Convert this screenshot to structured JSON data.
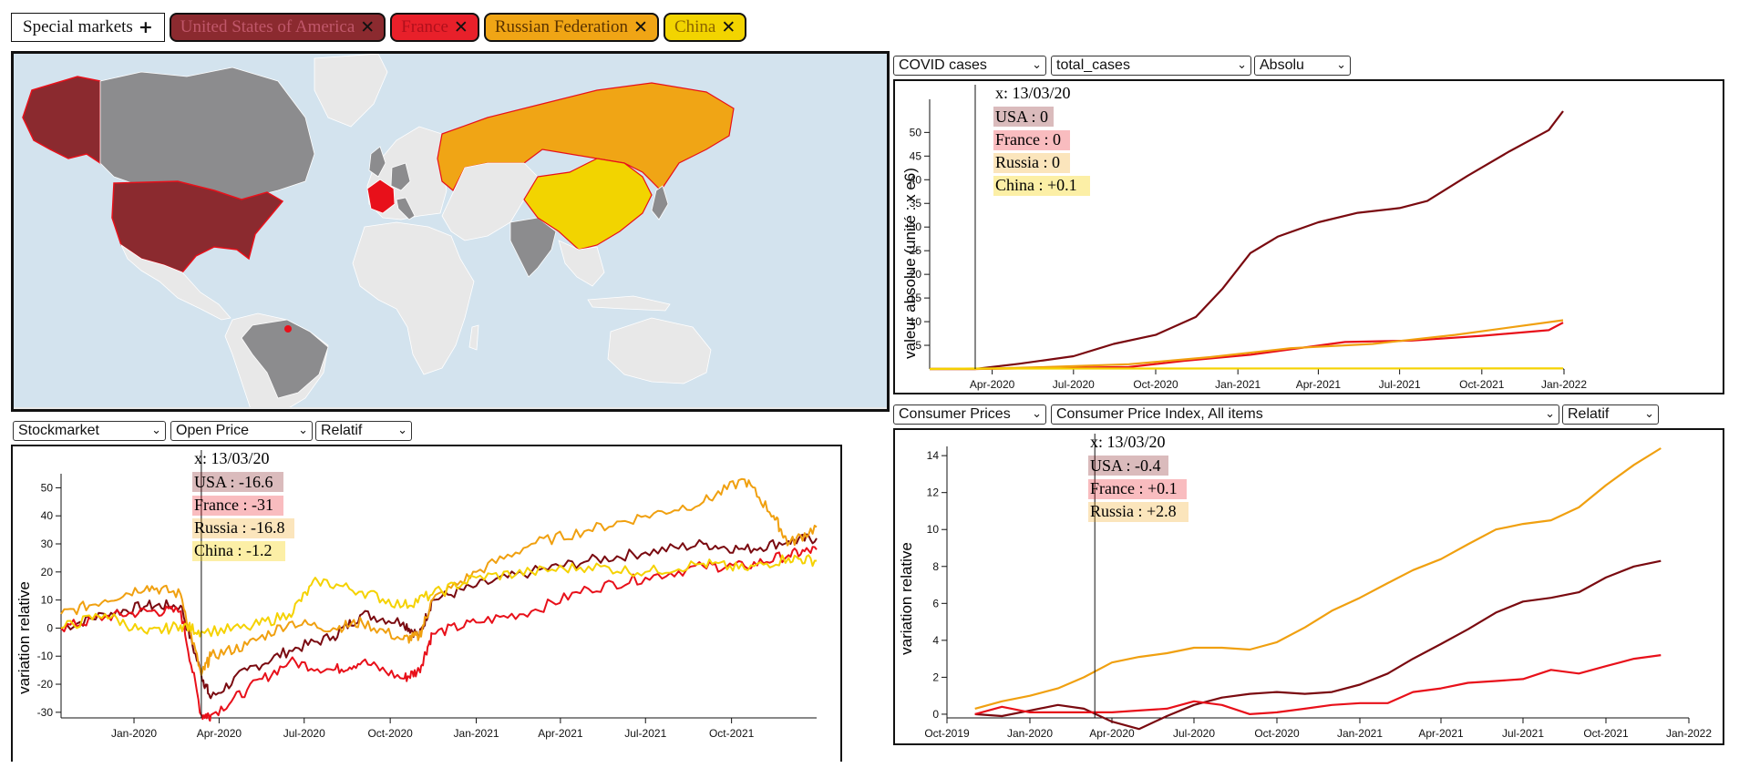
{
  "header": {
    "special_label": "Special markets",
    "special_icon": "plus-icon",
    "countries": [
      {
        "label": "United States of America",
        "bg": "#8b2a2f",
        "fg": "#c0576a"
      },
      {
        "label": "France",
        "bg": "#e8202a",
        "fg": "#b0101c"
      },
      {
        "label": "Russian Federation",
        "bg": "#f0a515",
        "fg": "#5a3300"
      },
      {
        "label": "China",
        "bg": "#f2d400",
        "fg": "#8a6500"
      }
    ]
  },
  "colors": {
    "usa": "#7a0a10",
    "france": "#e8101a",
    "russia": "#f0a010",
    "china": "#f5d200",
    "map_sea": "#d3e3ee",
    "map_land": "#e8e8e8",
    "map_grey": "#8c8c8e"
  },
  "covid": {
    "selects": [
      "COVID cases",
      "total_cases",
      "Absolu"
    ],
    "ylabel": "valeur absolue (unité : x e6)",
    "tooltip": {
      "x": "x: 13/03/20",
      "usa": "USA : 0",
      "france": "France : 0",
      "russia": "Russia : 0",
      "china": "China : +0.1"
    }
  },
  "stock": {
    "selects": [
      "Stockmarket",
      "Open Price",
      "Relatif"
    ],
    "ylabel": "variation relative",
    "tooltip": {
      "x": "x: 13/03/20",
      "usa": "USA : -16.6",
      "france": "France : -31",
      "russia": "Russia : -16.8",
      "china": "China : -1.2"
    }
  },
  "cpi": {
    "selects": [
      "Consumer Prices",
      "Consumer Price Index, All items",
      "Relatif"
    ],
    "ylabel": "variation relative",
    "tooltip": {
      "x": "x: 13/03/20",
      "usa": "USA : -0.4",
      "france": "France : +0.1",
      "russia": "Russia : +2.8"
    }
  },
  "chart_data": [
    {
      "type": "line",
      "title": "",
      "ylabel": "valeur absolue (unité : x e6)",
      "x_ticks": [
        "Apr-2020",
        "Jul-2020",
        "Oct-2020",
        "Jan-2021",
        "Apr-2021",
        "Jul-2021",
        "Oct-2021",
        "Jan-2022"
      ],
      "y_ticks": [
        5,
        10,
        15,
        20,
        25,
        30,
        35,
        40,
        45,
        50
      ],
      "xlim": [
        "2020-01-22",
        "2022-01-01"
      ],
      "ylim": [
        0,
        57
      ],
      "series": [
        {
          "name": "USA",
          "color": "#7a0a10",
          "x": [
            "2020-01-22",
            "2020-03-13",
            "2020-05-01",
            "2020-07-01",
            "2020-08-15",
            "2020-10-01",
            "2020-11-15",
            "2020-12-15",
            "2021-01-15",
            "2021-02-15",
            "2021-04-01",
            "2021-05-15",
            "2021-07-01",
            "2021-08-01",
            "2021-09-15",
            "2021-11-01",
            "2021-12-15",
            "2021-12-31"
          ],
          "values": [
            0,
            0,
            1.1,
            2.7,
            5.3,
            7.2,
            11.0,
            17.0,
            24.5,
            28.0,
            31.0,
            33.0,
            34.0,
            35.5,
            40.8,
            46.0,
            50.5,
            54.5
          ]
        },
        {
          "name": "France",
          "color": "#e8101a",
          "x": [
            "2020-01-22",
            "2020-03-13",
            "2020-06-01",
            "2020-09-01",
            "2020-11-01",
            "2021-01-15",
            "2021-04-15",
            "2021-05-01",
            "2021-07-15",
            "2021-10-01",
            "2021-12-15",
            "2021-12-31"
          ],
          "values": [
            0,
            0,
            0.2,
            0.4,
            1.7,
            3.0,
            5.3,
            5.7,
            6.0,
            7.0,
            8.2,
            9.8
          ]
        },
        {
          "name": "Russia",
          "color": "#f0a010",
          "x": [
            "2020-01-22",
            "2020-03-13",
            "2020-06-01",
            "2020-09-01",
            "2020-12-01",
            "2021-03-01",
            "2021-06-01",
            "2021-09-01",
            "2021-12-31"
          ],
          "values": [
            0,
            0,
            0.4,
            1.0,
            2.5,
            4.4,
            5.3,
            7.2,
            10.3
          ]
        },
        {
          "name": "China",
          "color": "#f5d200",
          "x": [
            "2020-01-22",
            "2020-03-13",
            "2021-12-31"
          ],
          "values": [
            0,
            0.1,
            0.11
          ]
        }
      ]
    },
    {
      "type": "line",
      "title": "",
      "ylabel": "variation relative",
      "x_ticks": [
        "Jan-2020",
        "Apr-2020",
        "Jul-2020",
        "Oct-2020",
        "Jan-2021",
        "Apr-2021",
        "Jul-2021",
        "Oct-2021"
      ],
      "y_ticks": [
        -30,
        -20,
        -10,
        0,
        10,
        20,
        30,
        40,
        50
      ],
      "xlim": [
        "2019-10-15",
        "2021-12-31"
      ],
      "ylim": [
        -32,
        55
      ],
      "series": [
        {
          "name": "USA",
          "color": "#7a0a10",
          "x": [
            "2019-10-15",
            "2019-12-01",
            "2020-01-15",
            "2020-02-20",
            "2020-03-13",
            "2020-03-23",
            "2020-05-01",
            "2020-06-15",
            "2020-08-01",
            "2020-09-01",
            "2020-10-15",
            "2020-11-01",
            "2020-11-15",
            "2021-01-01",
            "2021-03-01",
            "2021-05-01",
            "2021-07-01",
            "2021-09-01",
            "2021-10-15",
            "2021-12-01",
            "2021-12-31"
          ],
          "values": [
            0,
            5,
            8,
            8,
            -16.6,
            -25,
            -15,
            -8,
            -3,
            5,
            2,
            -3,
            10,
            15,
            20,
            24,
            27,
            30,
            28,
            31,
            32
          ]
        },
        {
          "name": "France",
          "color": "#e8101a",
          "x": [
            "2019-10-15",
            "2019-12-01",
            "2020-01-15",
            "2020-02-20",
            "2020-03-13",
            "2020-03-23",
            "2020-05-01",
            "2020-06-15",
            "2020-08-01",
            "2020-09-01",
            "2020-10-15",
            "2020-11-01",
            "2020-11-15",
            "2021-01-01",
            "2021-03-01",
            "2021-05-01",
            "2021-07-01",
            "2021-09-01",
            "2021-10-15",
            "2021-12-01",
            "2021-12-31"
          ],
          "values": [
            0,
            4,
            6,
            6,
            -31,
            -31,
            -22,
            -12,
            -15,
            -12,
            -18,
            -15,
            -2,
            2,
            6,
            14,
            18,
            22,
            22,
            26,
            28
          ]
        },
        {
          "name": "Russia",
          "color": "#f0a010",
          "x": [
            "2019-10-15",
            "2019-12-01",
            "2020-01-15",
            "2020-02-20",
            "2020-03-13",
            "2020-03-23",
            "2020-05-01",
            "2020-06-15",
            "2020-08-01",
            "2020-09-01",
            "2020-10-15",
            "2020-11-01",
            "2020-11-15",
            "2021-01-01",
            "2021-03-01",
            "2021-05-01",
            "2021-07-01",
            "2021-09-01",
            "2021-10-15",
            "2021-11-15",
            "2021-12-01",
            "2021-12-31"
          ],
          "values": [
            5,
            10,
            15,
            12,
            -16.8,
            -10,
            -6,
            2,
            0,
            2,
            -4,
            -3,
            10,
            20,
            30,
            35,
            40,
            45,
            53,
            40,
            30,
            36
          ]
        },
        {
          "name": "China",
          "color": "#f5d200",
          "x": [
            "2019-10-15",
            "2019-12-01",
            "2020-01-15",
            "2020-02-20",
            "2020-03-13",
            "2020-05-01",
            "2020-06-15",
            "2020-07-15",
            "2020-09-01",
            "2020-10-15",
            "2020-11-15",
            "2021-01-01",
            "2021-03-01",
            "2021-05-01",
            "2021-07-01",
            "2021-09-01",
            "2021-10-15",
            "2021-12-01",
            "2021-12-31"
          ],
          "values": [
            0,
            5,
            -2,
            1,
            -1.2,
            0,
            5,
            17,
            13,
            8,
            12,
            18,
            20,
            22,
            20,
            23,
            21,
            25,
            24
          ]
        }
      ]
    },
    {
      "type": "line",
      "title": "",
      "ylabel": "variation relative",
      "x_ticks": [
        "Oct-2019",
        "Jan-2020",
        "Apr-2020",
        "Jul-2020",
        "Oct-2020",
        "Jan-2021",
        "Apr-2021",
        "Jul-2021",
        "Oct-2021",
        "Jan-2022"
      ],
      "y_ticks": [
        0,
        2,
        4,
        6,
        8,
        10,
        12,
        14
      ],
      "xlim": [
        "2019-10-01",
        "2022-01-01"
      ],
      "ylim": [
        -0.2,
        14.5
      ],
      "series": [
        {
          "name": "USA",
          "color": "#7a0a10",
          "x": [
            "2019-11-01",
            "2019-12-01",
            "2020-01-01",
            "2020-02-01",
            "2020-03-01",
            "2020-04-01",
            "2020-05-01",
            "2020-06-01",
            "2020-07-01",
            "2020-08-01",
            "2020-09-01",
            "2020-10-01",
            "2020-11-01",
            "2020-12-01",
            "2021-01-01",
            "2021-02-01",
            "2021-03-01",
            "2021-04-01",
            "2021-05-01",
            "2021-06-01",
            "2021-07-01",
            "2021-08-01",
            "2021-09-01",
            "2021-10-01",
            "2021-11-01",
            "2021-12-01"
          ],
          "values": [
            0,
            -0.1,
            0.2,
            0.5,
            0.3,
            -0.4,
            -0.8,
            -0.1,
            0.5,
            0.9,
            1.1,
            1.2,
            1.1,
            1.2,
            1.6,
            2.2,
            3.0,
            3.8,
            4.6,
            5.5,
            6.1,
            6.3,
            6.6,
            7.4,
            8.0,
            8.3
          ]
        },
        {
          "name": "France",
          "color": "#e8101a",
          "x": [
            "2019-11-01",
            "2019-12-01",
            "2020-01-01",
            "2020-02-01",
            "2020-03-01",
            "2020-04-01",
            "2020-05-01",
            "2020-06-01",
            "2020-07-01",
            "2020-08-01",
            "2020-09-01",
            "2020-10-01",
            "2020-11-01",
            "2020-12-01",
            "2021-01-01",
            "2021-02-01",
            "2021-03-01",
            "2021-04-01",
            "2021-05-01",
            "2021-06-01",
            "2021-07-01",
            "2021-08-01",
            "2021-09-01",
            "2021-10-01",
            "2021-11-01",
            "2021-12-01"
          ],
          "values": [
            0,
            0.4,
            0.1,
            0.1,
            0.1,
            0.1,
            0.2,
            0.3,
            0.7,
            0.5,
            0.0,
            0.1,
            0.3,
            0.5,
            0.6,
            0.6,
            1.2,
            1.4,
            1.7,
            1.8,
            1.9,
            2.4,
            2.2,
            2.6,
            3.0,
            3.2
          ]
        },
        {
          "name": "Russia",
          "color": "#f0a010",
          "x": [
            "2019-11-01",
            "2019-12-01",
            "2020-01-01",
            "2020-02-01",
            "2020-03-01",
            "2020-04-01",
            "2020-05-01",
            "2020-06-01",
            "2020-07-01",
            "2020-08-01",
            "2020-09-01",
            "2020-10-01",
            "2020-11-01",
            "2020-12-01",
            "2021-01-01",
            "2021-02-01",
            "2021-03-01",
            "2021-04-01",
            "2021-05-01",
            "2021-06-01",
            "2021-07-01",
            "2021-08-01",
            "2021-09-01",
            "2021-10-01",
            "2021-11-01",
            "2021-12-01"
          ],
          "values": [
            0.3,
            0.7,
            1.0,
            1.4,
            2.0,
            2.8,
            3.1,
            3.3,
            3.6,
            3.6,
            3.5,
            3.9,
            4.7,
            5.6,
            6.3,
            7.1,
            7.8,
            8.4,
            9.2,
            10.0,
            10.3,
            10.5,
            11.2,
            12.4,
            13.5,
            14.4
          ]
        }
      ]
    }
  ]
}
